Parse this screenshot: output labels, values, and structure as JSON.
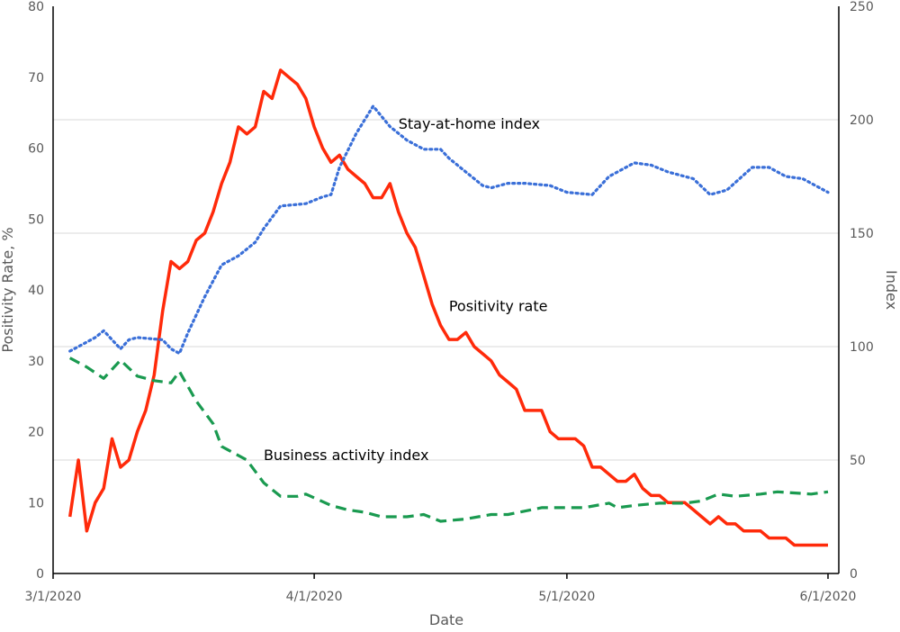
{
  "chart_data": {
    "type": "line",
    "title": "",
    "xlabel": "Date",
    "ylabel_left": "Positivity Rate, %",
    "ylabel_right": "Index",
    "xlim": [
      "3/1/2020",
      "6/1/2020"
    ],
    "ylim_left": [
      0,
      80
    ],
    "ylim_right": [
      0,
      250
    ],
    "x_ticks": [
      "3/1/2020",
      "4/1/2020",
      "5/1/2020",
      "6/1/2020"
    ],
    "y_ticks_left": [
      0,
      10,
      20,
      30,
      40,
      50,
      60,
      70,
      80
    ],
    "y_ticks_right": [
      0,
      50,
      100,
      150,
      200,
      250
    ],
    "grid": "horizontal, right axis",
    "legend": "none (inline labels)",
    "series": [
      {
        "name": "Positivity rate",
        "axis": "left",
        "color": "#ff2a0a",
        "style": "solid",
        "start_date": "3/3/2020",
        "values": [
          8,
          16,
          6,
          10,
          12,
          19,
          15,
          16,
          20,
          23,
          28,
          37,
          44,
          43,
          44,
          47,
          48,
          51,
          55,
          58,
          63,
          62,
          63,
          68,
          67,
          71,
          70,
          69,
          67,
          63,
          60,
          58,
          59,
          57,
          56,
          55,
          53,
          53,
          55,
          51,
          48,
          46,
          42,
          38,
          35,
          33,
          33,
          34,
          32,
          31,
          30,
          28,
          27,
          26,
          23,
          23,
          23,
          20,
          19,
          19,
          19,
          18,
          15,
          15,
          14,
          13,
          13,
          14,
          12,
          11,
          11,
          10,
          10,
          10,
          9,
          8,
          7,
          8,
          7,
          7,
          6,
          6,
          6,
          5,
          5,
          5,
          4,
          4,
          4,
          4,
          4
        ]
      },
      {
        "name": "Stay-at-home index",
        "axis": "right",
        "color": "#3a6fd8",
        "style": "dotted",
        "points": [
          [
            "3/3/2020",
            98
          ],
          [
            "3/4/2020",
            100
          ],
          [
            "3/6/2020",
            104
          ],
          [
            "3/7/2020",
            107
          ],
          [
            "3/9/2020",
            99
          ],
          [
            "3/10/2020",
            103
          ],
          [
            "3/11/2020",
            104
          ],
          [
            "3/14/2020",
            103
          ],
          [
            "3/15/2020",
            99
          ],
          [
            "3/16/2020",
            97
          ],
          [
            "3/17/2020",
            106
          ],
          [
            "3/19/2020",
            122
          ],
          [
            "3/21/2020",
            136
          ],
          [
            "3/23/2020",
            140
          ],
          [
            "3/25/2020",
            146
          ],
          [
            "3/26/2020",
            152
          ],
          [
            "3/28/2020",
            162
          ],
          [
            "3/31/2020",
            163
          ],
          [
            "4/2/2020",
            166
          ],
          [
            "4/3/2020",
            167
          ],
          [
            "4/4/2020",
            179
          ],
          [
            "4/6/2020",
            194
          ],
          [
            "4/8/2020",
            206
          ],
          [
            "4/10/2020",
            197
          ],
          [
            "4/12/2020",
            191
          ],
          [
            "4/14/2020",
            187
          ],
          [
            "4/16/2020",
            187
          ],
          [
            "4/17/2020",
            183
          ],
          [
            "4/19/2020",
            177
          ],
          [
            "4/21/2020",
            171
          ],
          [
            "4/22/2020",
            170
          ],
          [
            "4/24/2020",
            172
          ],
          [
            "4/26/2020",
            172
          ],
          [
            "4/29/2020",
            171
          ],
          [
            "5/1/2020",
            168
          ],
          [
            "5/4/2020",
            167
          ],
          [
            "5/6/2020",
            175
          ],
          [
            "5/9/2020",
            181
          ],
          [
            "5/11/2020",
            180
          ],
          [
            "5/13/2020",
            177
          ],
          [
            "5/16/2020",
            174
          ],
          [
            "5/18/2020",
            167
          ],
          [
            "5/20/2020",
            169
          ],
          [
            "5/23/2020",
            179
          ],
          [
            "5/25/2020",
            179
          ],
          [
            "5/27/2020",
            175
          ],
          [
            "5/29/2020",
            174
          ],
          [
            "6/1/2020",
            168
          ]
        ]
      },
      {
        "name": "Business activity index",
        "axis": "right",
        "color": "#1a9a50",
        "style": "dashed",
        "points": [
          [
            "3/3/2020",
            95
          ],
          [
            "3/5/2020",
            91
          ],
          [
            "3/7/2020",
            86
          ],
          [
            "3/9/2020",
            94
          ],
          [
            "3/11/2020",
            87
          ],
          [
            "3/13/2020",
            85
          ],
          [
            "3/15/2020",
            84
          ],
          [
            "3/16/2020",
            89
          ],
          [
            "3/18/2020",
            76
          ],
          [
            "3/20/2020",
            66
          ],
          [
            "3/21/2020",
            56
          ],
          [
            "3/24/2020",
            50
          ],
          [
            "3/26/2020",
            40
          ],
          [
            "3/28/2020",
            34
          ],
          [
            "3/30/2020",
            34
          ],
          [
            "3/31/2020",
            35
          ],
          [
            "4/3/2020",
            30
          ],
          [
            "4/5/2020",
            28
          ],
          [
            "4/7/2020",
            27
          ],
          [
            "4/9/2020",
            25
          ],
          [
            "4/12/2020",
            25
          ],
          [
            "4/14/2020",
            26
          ],
          [
            "4/16/2020",
            23
          ],
          [
            "4/19/2020",
            24
          ],
          [
            "4/22/2020",
            26
          ],
          [
            "4/24/2020",
            26
          ],
          [
            "4/28/2020",
            29
          ],
          [
            "4/30/2020",
            29
          ],
          [
            "5/3/2020",
            29
          ],
          [
            "5/6/2020",
            31
          ],
          [
            "5/7/2020",
            29
          ],
          [
            "5/9/2020",
            30
          ],
          [
            "5/12/2020",
            31
          ],
          [
            "5/15/2020",
            31
          ],
          [
            "5/17/2020",
            32
          ],
          [
            "5/19/2020",
            35
          ],
          [
            "5/21/2020",
            34
          ],
          [
            "5/24/2020",
            35
          ],
          [
            "5/26/2020",
            36
          ],
          [
            "5/30/2020",
            35
          ],
          [
            "6/1/2020",
            36
          ]
        ]
      }
    ],
    "annotations": [
      {
        "text": "Stay-at-home index",
        "date": "4/11/2020",
        "value_right": 196
      },
      {
        "text": "Positivity rate",
        "date": "4/17/2020",
        "value_left": 37
      },
      {
        "text": "Business activity index",
        "date": "3/26/2020",
        "value_left": 16
      }
    ]
  }
}
